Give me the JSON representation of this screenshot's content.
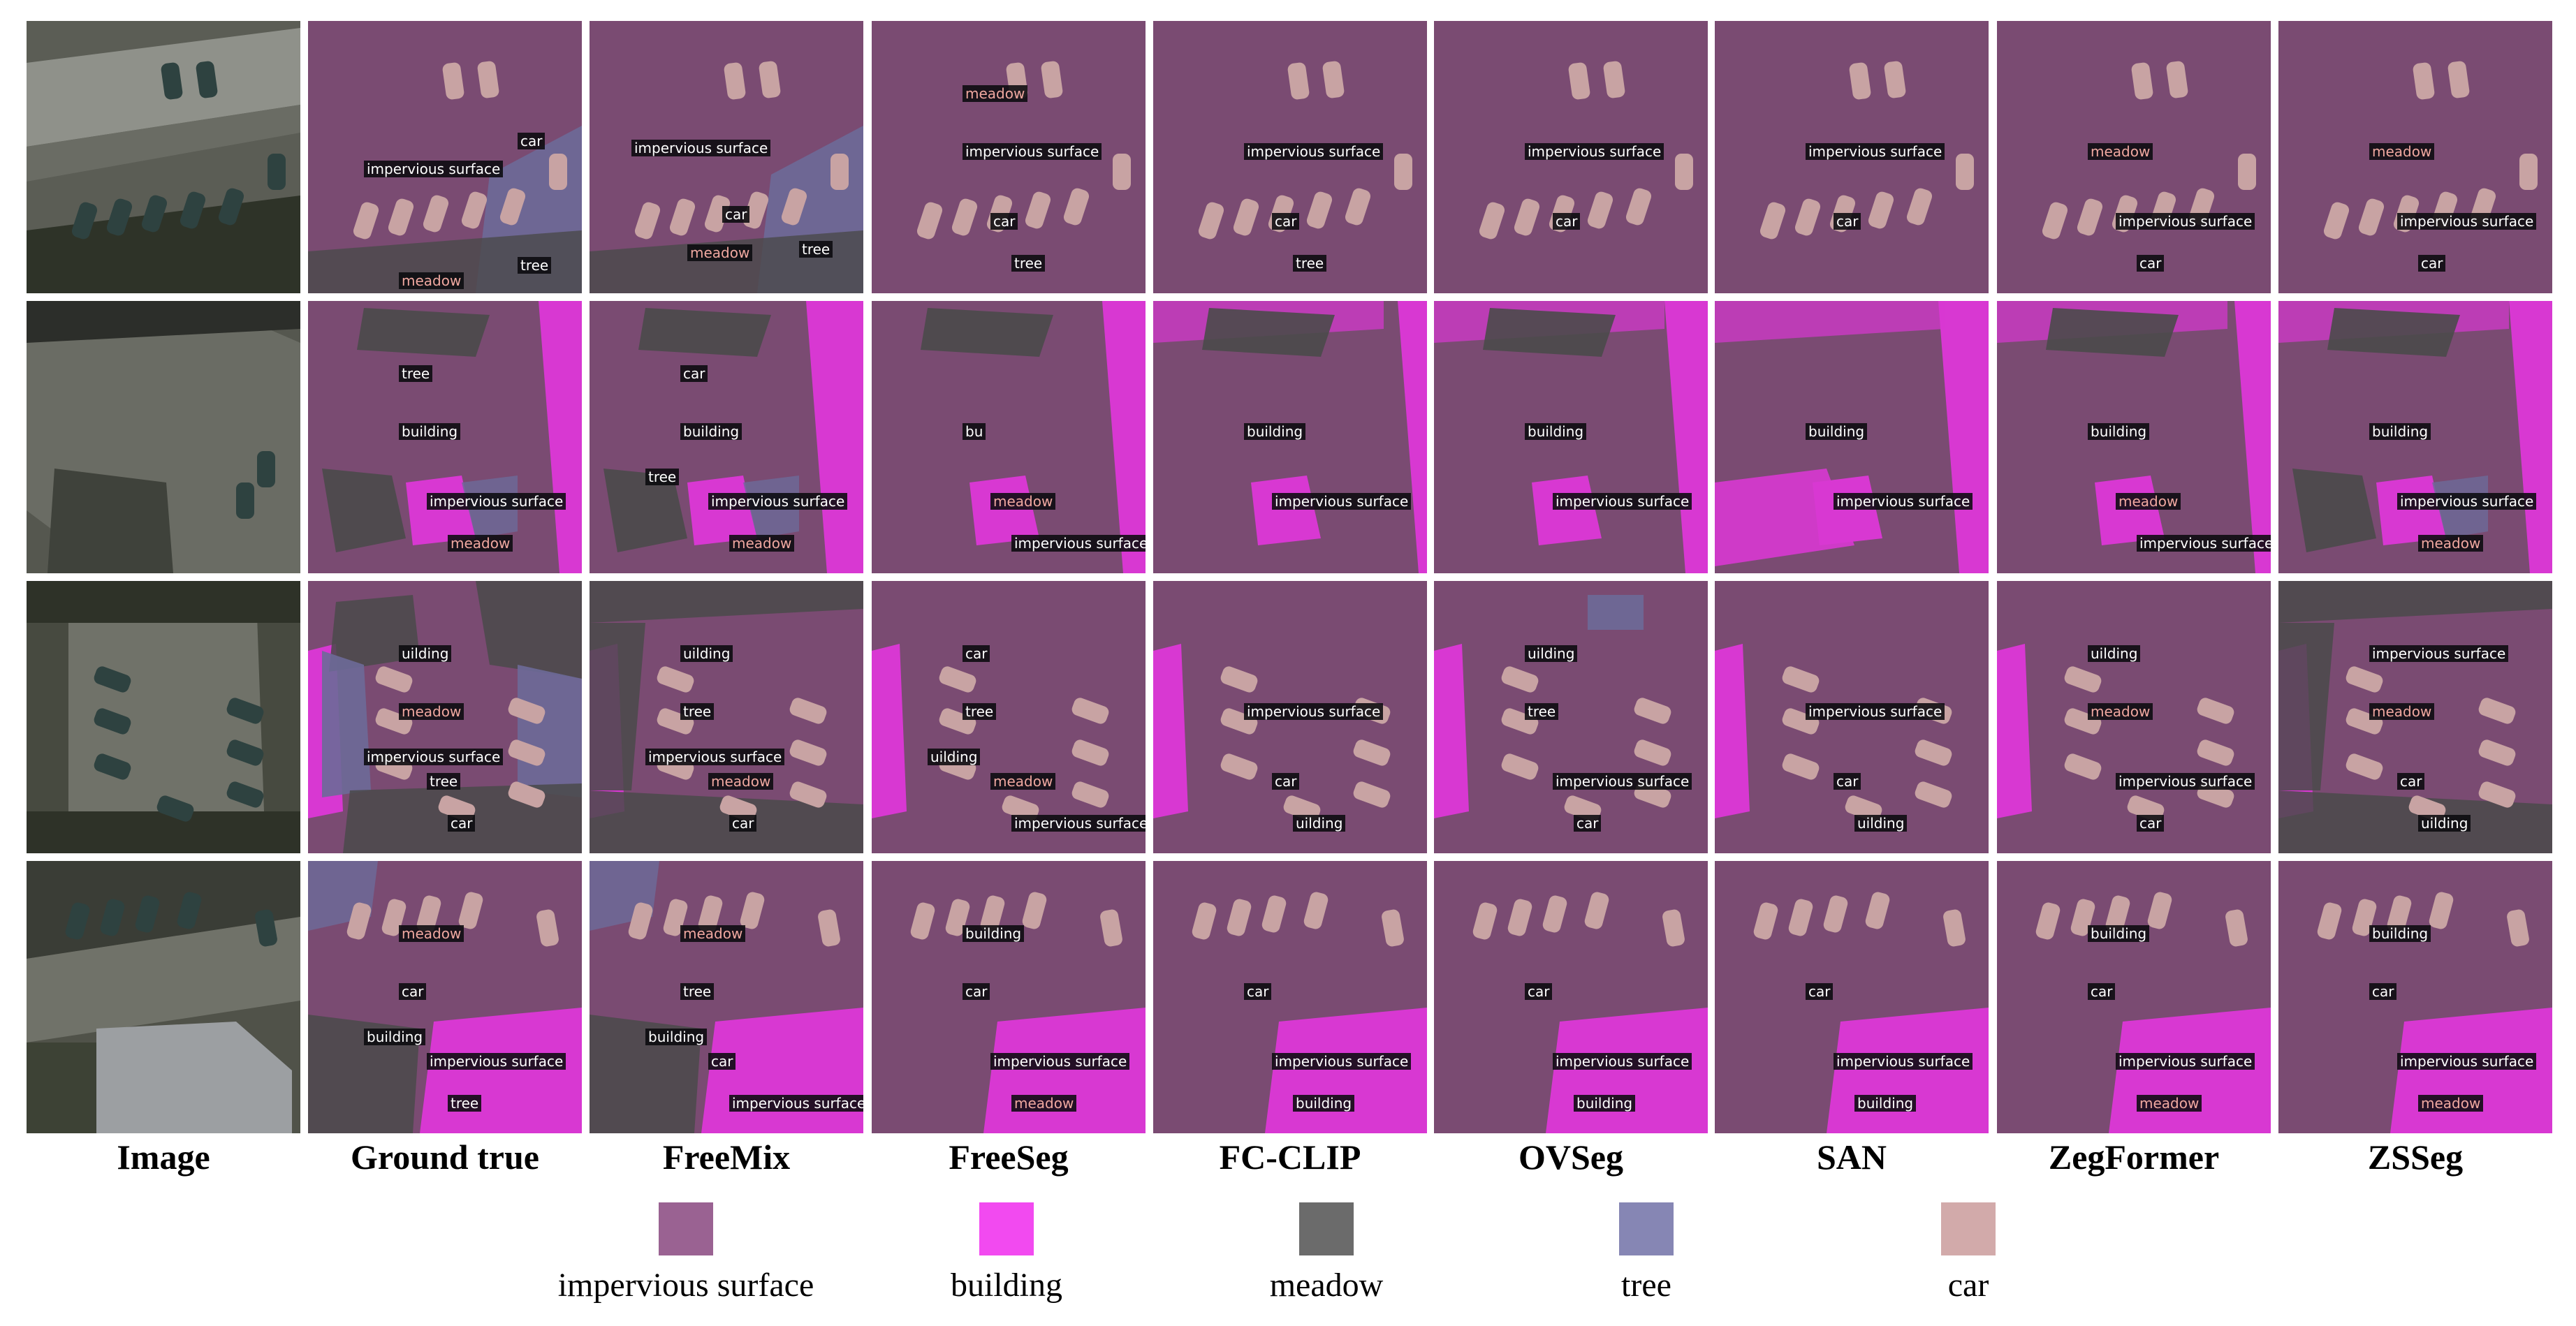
{
  "columns": [
    "Image",
    "Ground true",
    "FreeMix",
    "FreeSeg",
    "FC-CLIP",
    "OVSeg",
    "SAN",
    "ZegFormer",
    "ZSSeg"
  ],
  "classes": [
    {
      "key": "impervious",
      "label": "impervious surface",
      "color": "#9a6292"
    },
    {
      "key": "building",
      "label": "building",
      "color": "#f24af0"
    },
    {
      "key": "meadow",
      "label": "meadow",
      "color": "#6b6b6b"
    },
    {
      "key": "tree",
      "label": "tree",
      "color": "#8686b4"
    },
    {
      "key": "car",
      "label": "car",
      "color": "#d2aaaa"
    }
  ],
  "rows": [
    {
      "columns": [
        {
          "tags": []
        },
        {
          "tags": [
            "car",
            "impervious surface",
            "tree",
            "meadow"
          ]
        },
        {
          "tags": [
            "impervious surface",
            "car",
            "meadow",
            "tree"
          ]
        },
        {
          "tags": [
            "impervious surface",
            "car",
            "tree",
            "meadow"
          ]
        },
        {
          "tags": [
            "impervious surface",
            "car",
            "tree"
          ]
        },
        {
          "tags": [
            "impervious surface",
            "car"
          ]
        },
        {
          "tags": [
            "impervious surface",
            "car"
          ]
        },
        {
          "tags": [
            "meadow",
            "impervious surface",
            "car"
          ]
        },
        {
          "tags": [
            "meadow",
            "impervious surface",
            "car"
          ]
        }
      ]
    },
    {
      "columns": [
        {
          "tags": []
        },
        {
          "tags": [
            "building",
            "impervious surface",
            "meadow",
            "tree"
          ]
        },
        {
          "tags": [
            "building",
            "impervious surface",
            "meadow",
            "car",
            "tree"
          ]
        },
        {
          "tags": [
            "bu",
            "meadow",
            "impervious surface"
          ]
        },
        {
          "tags": [
            "building",
            "impervious surface"
          ]
        },
        {
          "tags": [
            "building",
            "impervious surface"
          ]
        },
        {
          "tags": [
            "building",
            "impervious surface"
          ]
        },
        {
          "tags": [
            "building",
            "meadow",
            "impervious surface"
          ]
        },
        {
          "tags": [
            "building",
            "impervious surface",
            "meadow"
          ]
        }
      ]
    },
    {
      "columns": [
        {
          "tags": []
        },
        {
          "tags": [
            "meadow",
            "tree",
            "car",
            "uilding",
            "impervious surface"
          ]
        },
        {
          "tags": [
            "tree",
            "meadow",
            "car",
            "uilding",
            "impervious surface"
          ]
        },
        {
          "tags": [
            "tree",
            "meadow",
            "impervious surface",
            "car",
            "uilding"
          ]
        },
        {
          "tags": [
            "impervious surface",
            "car",
            "uilding"
          ]
        },
        {
          "tags": [
            "tree",
            "impervious surface",
            "car",
            "uilding"
          ]
        },
        {
          "tags": [
            "impervious surface",
            "car",
            "uilding"
          ]
        },
        {
          "tags": [
            "meadow",
            "impervious surface",
            "car",
            "uilding"
          ]
        },
        {
          "tags": [
            "meadow",
            "car",
            "uilding",
            "impervious surface"
          ]
        }
      ]
    },
    {
      "columns": [
        {
          "tags": []
        },
        {
          "tags": [
            "car",
            "impervious surface",
            "tree",
            "meadow",
            "building"
          ]
        },
        {
          "tags": [
            "tree",
            "car",
            "impervious surface",
            "meadow",
            "building"
          ]
        },
        {
          "tags": [
            "car",
            "impervious surface",
            "meadow",
            "building"
          ]
        },
        {
          "tags": [
            "car",
            "impervious surface",
            "building"
          ]
        },
        {
          "tags": [
            "car",
            "impervious surface",
            "building"
          ]
        },
        {
          "tags": [
            "car",
            "impervious surface",
            "building"
          ]
        },
        {
          "tags": [
            "car",
            "impervious surface",
            "meadow",
            "building"
          ]
        },
        {
          "tags": [
            "car",
            "impervious surface",
            "meadow",
            "building"
          ]
        }
      ]
    }
  ]
}
